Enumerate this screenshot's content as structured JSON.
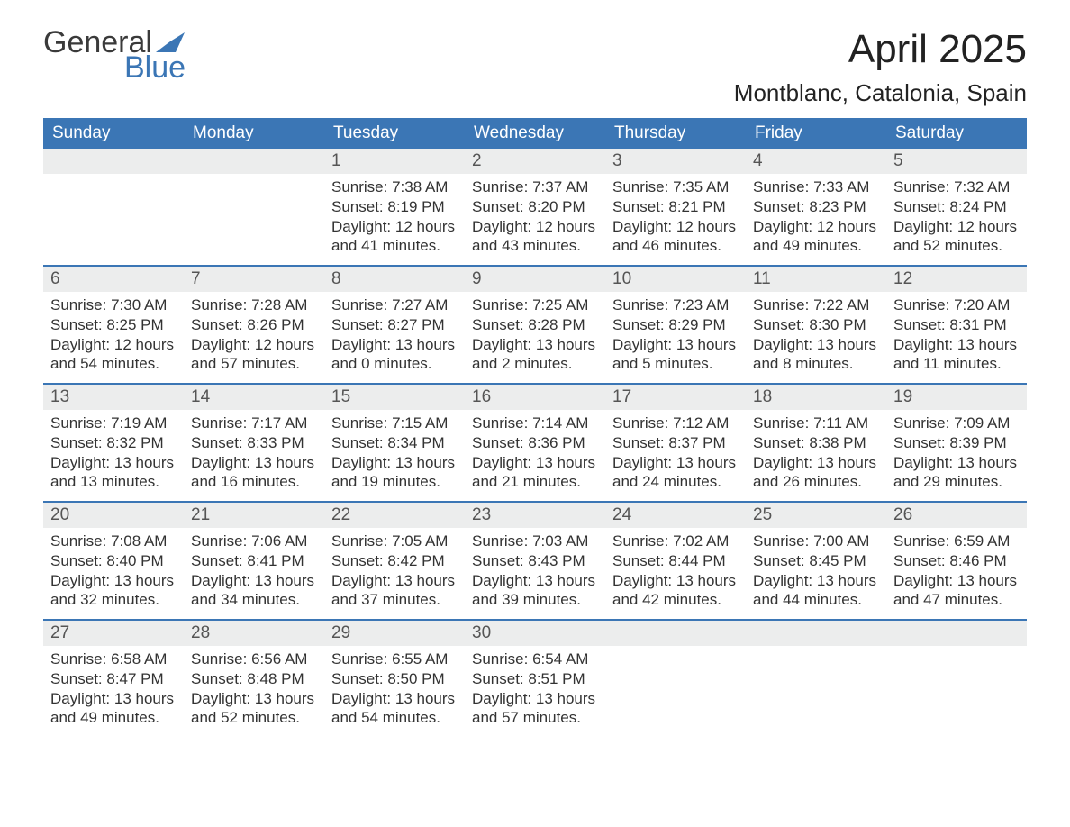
{
  "logo": {
    "word1": "General",
    "word2": "Blue",
    "icon_color": "#3b76b5"
  },
  "title": "April 2025",
  "location": "Montblanc, Catalonia, Spain",
  "colors": {
    "header_bg": "#3b76b5",
    "header_text": "#ffffff",
    "daynum_bg": "#eceded",
    "week_divider": "#3b76b5",
    "body_text": "#333333",
    "page_bg": "#ffffff"
  },
  "fonts": {
    "title_size_pt": 33,
    "location_size_pt": 20,
    "dayhead_size_pt": 14,
    "daynum_size_pt": 14,
    "body_size_pt": 13
  },
  "day_names": [
    "Sunday",
    "Monday",
    "Tuesday",
    "Wednesday",
    "Thursday",
    "Friday",
    "Saturday"
  ],
  "labels": {
    "sunrise": "Sunrise:",
    "sunset": "Sunset:",
    "daylight": "Daylight:"
  },
  "weeks": [
    [
      {
        "day": "",
        "sunrise": "",
        "sunset": "",
        "daylight1": "",
        "daylight2": ""
      },
      {
        "day": "",
        "sunrise": "",
        "sunset": "",
        "daylight1": "",
        "daylight2": ""
      },
      {
        "day": "1",
        "sunrise": "7:38 AM",
        "sunset": "8:19 PM",
        "daylight1": "12 hours",
        "daylight2": "and 41 minutes."
      },
      {
        "day": "2",
        "sunrise": "7:37 AM",
        "sunset": "8:20 PM",
        "daylight1": "12 hours",
        "daylight2": "and 43 minutes."
      },
      {
        "day": "3",
        "sunrise": "7:35 AM",
        "sunset": "8:21 PM",
        "daylight1": "12 hours",
        "daylight2": "and 46 minutes."
      },
      {
        "day": "4",
        "sunrise": "7:33 AM",
        "sunset": "8:23 PM",
        "daylight1": "12 hours",
        "daylight2": "and 49 minutes."
      },
      {
        "day": "5",
        "sunrise": "7:32 AM",
        "sunset": "8:24 PM",
        "daylight1": "12 hours",
        "daylight2": "and 52 minutes."
      }
    ],
    [
      {
        "day": "6",
        "sunrise": "7:30 AM",
        "sunset": "8:25 PM",
        "daylight1": "12 hours",
        "daylight2": "and 54 minutes."
      },
      {
        "day": "7",
        "sunrise": "7:28 AM",
        "sunset": "8:26 PM",
        "daylight1": "12 hours",
        "daylight2": "and 57 minutes."
      },
      {
        "day": "8",
        "sunrise": "7:27 AM",
        "sunset": "8:27 PM",
        "daylight1": "13 hours",
        "daylight2": "and 0 minutes."
      },
      {
        "day": "9",
        "sunrise": "7:25 AM",
        "sunset": "8:28 PM",
        "daylight1": "13 hours",
        "daylight2": "and 2 minutes."
      },
      {
        "day": "10",
        "sunrise": "7:23 AM",
        "sunset": "8:29 PM",
        "daylight1": "13 hours",
        "daylight2": "and 5 minutes."
      },
      {
        "day": "11",
        "sunrise": "7:22 AM",
        "sunset": "8:30 PM",
        "daylight1": "13 hours",
        "daylight2": "and 8 minutes."
      },
      {
        "day": "12",
        "sunrise": "7:20 AM",
        "sunset": "8:31 PM",
        "daylight1": "13 hours",
        "daylight2": "and 11 minutes."
      }
    ],
    [
      {
        "day": "13",
        "sunrise": "7:19 AM",
        "sunset": "8:32 PM",
        "daylight1": "13 hours",
        "daylight2": "and 13 minutes."
      },
      {
        "day": "14",
        "sunrise": "7:17 AM",
        "sunset": "8:33 PM",
        "daylight1": "13 hours",
        "daylight2": "and 16 minutes."
      },
      {
        "day": "15",
        "sunrise": "7:15 AM",
        "sunset": "8:34 PM",
        "daylight1": "13 hours",
        "daylight2": "and 19 minutes."
      },
      {
        "day": "16",
        "sunrise": "7:14 AM",
        "sunset": "8:36 PM",
        "daylight1": "13 hours",
        "daylight2": "and 21 minutes."
      },
      {
        "day": "17",
        "sunrise": "7:12 AM",
        "sunset": "8:37 PM",
        "daylight1": "13 hours",
        "daylight2": "and 24 minutes."
      },
      {
        "day": "18",
        "sunrise": "7:11 AM",
        "sunset": "8:38 PM",
        "daylight1": "13 hours",
        "daylight2": "and 26 minutes."
      },
      {
        "day": "19",
        "sunrise": "7:09 AM",
        "sunset": "8:39 PM",
        "daylight1": "13 hours",
        "daylight2": "and 29 minutes."
      }
    ],
    [
      {
        "day": "20",
        "sunrise": "7:08 AM",
        "sunset": "8:40 PM",
        "daylight1": "13 hours",
        "daylight2": "and 32 minutes."
      },
      {
        "day": "21",
        "sunrise": "7:06 AM",
        "sunset": "8:41 PM",
        "daylight1": "13 hours",
        "daylight2": "and 34 minutes."
      },
      {
        "day": "22",
        "sunrise": "7:05 AM",
        "sunset": "8:42 PM",
        "daylight1": "13 hours",
        "daylight2": "and 37 minutes."
      },
      {
        "day": "23",
        "sunrise": "7:03 AM",
        "sunset": "8:43 PM",
        "daylight1": "13 hours",
        "daylight2": "and 39 minutes."
      },
      {
        "day": "24",
        "sunrise": "7:02 AM",
        "sunset": "8:44 PM",
        "daylight1": "13 hours",
        "daylight2": "and 42 minutes."
      },
      {
        "day": "25",
        "sunrise": "7:00 AM",
        "sunset": "8:45 PM",
        "daylight1": "13 hours",
        "daylight2": "and 44 minutes."
      },
      {
        "day": "26",
        "sunrise": "6:59 AM",
        "sunset": "8:46 PM",
        "daylight1": "13 hours",
        "daylight2": "and 47 minutes."
      }
    ],
    [
      {
        "day": "27",
        "sunrise": "6:58 AM",
        "sunset": "8:47 PM",
        "daylight1": "13 hours",
        "daylight2": "and 49 minutes."
      },
      {
        "day": "28",
        "sunrise": "6:56 AM",
        "sunset": "8:48 PM",
        "daylight1": "13 hours",
        "daylight2": "and 52 minutes."
      },
      {
        "day": "29",
        "sunrise": "6:55 AM",
        "sunset": "8:50 PM",
        "daylight1": "13 hours",
        "daylight2": "and 54 minutes."
      },
      {
        "day": "30",
        "sunrise": "6:54 AM",
        "sunset": "8:51 PM",
        "daylight1": "13 hours",
        "daylight2": "and 57 minutes."
      },
      {
        "day": "",
        "sunrise": "",
        "sunset": "",
        "daylight1": "",
        "daylight2": ""
      },
      {
        "day": "",
        "sunrise": "",
        "sunset": "",
        "daylight1": "",
        "daylight2": ""
      },
      {
        "day": "",
        "sunrise": "",
        "sunset": "",
        "daylight1": "",
        "daylight2": ""
      }
    ]
  ]
}
